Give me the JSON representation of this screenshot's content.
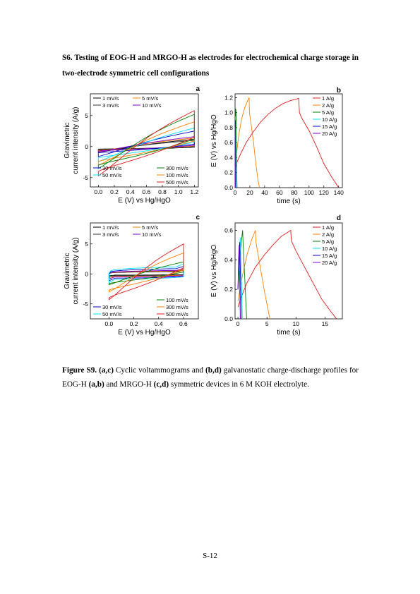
{
  "section_heading": "S6. Testing of EOG-H and MRGO-H as electrodes for electrochemical charge storage in two-electrode symmetric cell configurations",
  "caption": {
    "label": "Figure S9.",
    "parts": [
      {
        "t": " ",
        "b": false
      },
      {
        "t": "(a,c)",
        "b": true
      },
      {
        "t": " Cyclic voltammograms and ",
        "b": false
      },
      {
        "t": "(b,d)",
        "b": true
      },
      {
        "t": " galvanostatic charge-discharge profiles for EOG-H ",
        "b": false
      },
      {
        "t": "(a,b)",
        "b": true
      },
      {
        "t": " and MRGO-H ",
        "b": false
      },
      {
        "t": "(c,d)",
        "b": true
      },
      {
        "t": " symmetric devices in 6 M KOH electrolyte.",
        "b": false
      }
    ]
  },
  "page_number": "S-12",
  "colors": {
    "1": "#000000",
    "2": "#ff7f00",
    "3": "#008000",
    "4": "#00e0ff",
    "5": "#0000cc",
    "6": "#7b00d4",
    "7": "#e31a1c"
  },
  "chart_data": [
    {
      "panel": "a",
      "type": "line",
      "xlabel": "E (V) vs Hg/HgO",
      "ylabel": [
        "Gravimetric",
        "current intensity (A/g)"
      ],
      "xlim": [
        -0.1,
        1.25
      ],
      "ylim": [
        -6.5,
        8.5
      ],
      "xticks": [
        0.0,
        0.2,
        0.4,
        0.6,
        0.8,
        1.0,
        1.2
      ],
      "yticks": [
        -5,
        0,
        5
      ],
      "xtick_labels": [
        "0.0",
        "0.2",
        "0.4",
        "0.6",
        "0.8",
        "1.0",
        "1.2"
      ],
      "ytick_labels": [
        "-5",
        "0",
        "5"
      ],
      "legend_top": [
        [
          "1 mV/s",
          "5 mV/s"
        ],
        [
          "3 mV/s",
          "10 mV/s"
        ]
      ],
      "legend_bottom": [
        [
          "30 mV/s",
          "300 mV/s"
        ],
        [
          "50 mV/s",
          "100 mV/s"
        ],
        [
          "",
          "500 mV/s"
        ]
      ],
      "series": [
        {
          "name": "1 mV/s",
          "color": "#000000",
          "vmin": 0.0,
          "vmax": 1.2,
          "ia": -0.9,
          "ib": 1.2,
          "ic": -0.5,
          "id": -0.1
        },
        {
          "name": "3 mV/s",
          "color": "#333333",
          "vmin": 0.0,
          "vmax": 1.2,
          "ia": -0.7,
          "ib": 1.0,
          "ic": -0.4,
          "id": 0.0
        },
        {
          "name": "5 mV/s",
          "color": "#ff7f00",
          "vmin": 0.0,
          "vmax": 1.2,
          "ia": -0.8,
          "ib": 1.4,
          "ic": -0.6,
          "id": 0.1
        },
        {
          "name": "10 mV/s",
          "color": "#7b00d4",
          "vmin": 0.0,
          "vmax": 1.2,
          "ia": -0.9,
          "ib": 1.6,
          "ic": -0.7,
          "id": 0.2
        },
        {
          "name": "30 mV/s",
          "color": "#0000cc",
          "vmin": 0.0,
          "vmax": 1.2,
          "ia": -1.6,
          "ib": 2.5,
          "ic": -1.0,
          "id": 0.4
        },
        {
          "name": "50 mV/s",
          "color": "#00e0ff",
          "vmin": 0.0,
          "vmax": 1.2,
          "ia": -2.4,
          "ib": 3.0,
          "ic": -1.8,
          "id": 0.7
        },
        {
          "name": "100 mV/s",
          "color": "#ff7f00",
          "vmin": 0.0,
          "vmax": 1.2,
          "ia": -3.0,
          "ib": 4.0,
          "ic": -2.4,
          "id": 0.9
        },
        {
          "name": "300 mV/s",
          "color": "#008000",
          "vmin": 0.0,
          "vmax": 1.2,
          "ia": -3.5,
          "ib": 5.2,
          "ic": -3.0,
          "id": 1.2
        },
        {
          "name": "500 mV/s",
          "color": "#e31a1c",
          "vmin": 0.0,
          "vmax": 1.2,
          "ia": -4.7,
          "ib": 5.8,
          "ic": -4.0,
          "id": 1.5
        }
      ]
    },
    {
      "panel": "b",
      "type": "line",
      "xlabel": "time (s)",
      "ylabel": [
        "E (V) vs Hg/HgO"
      ],
      "xlim": [
        0,
        145
      ],
      "ylim": [
        0.0,
        1.25
      ],
      "xticks": [
        0,
        20,
        40,
        60,
        80,
        100,
        120,
        140
      ],
      "yticks": [
        0.0,
        0.2,
        0.4,
        0.6,
        0.8,
        1.0,
        1.2
      ],
      "xtick_labels": [
        "0",
        "20",
        "40",
        "60",
        "80",
        "100",
        "120",
        "140"
      ],
      "ytick_labels": [
        "0.0",
        "0.2",
        "0.4",
        "0.6",
        "0.8",
        "1.0",
        "1.2"
      ],
      "legend": [
        "1 A/g",
        "2 A/g",
        "5 A/g",
        "10 A/g",
        "15 A/g",
        "20 A/g"
      ],
      "series": [
        {
          "name": "1 A/g",
          "color": "#e31a1c",
          "points": [
            [
              0,
              0.22
            ],
            [
              3,
              0.35
            ],
            [
              8,
              0.46
            ],
            [
              15,
              0.6
            ],
            [
              25,
              0.75
            ],
            [
              35,
              0.88
            ],
            [
              45,
              0.98
            ],
            [
              55,
              1.06
            ],
            [
              65,
              1.12
            ],
            [
              75,
              1.16
            ],
            [
              83,
              1.18
            ],
            [
              86,
              1.19
            ],
            [
              87,
              1.0
            ],
            [
              90,
              0.93
            ],
            [
              100,
              0.76
            ],
            [
              110,
              0.55
            ],
            [
              120,
              0.32
            ],
            [
              130,
              0.15
            ],
            [
              136,
              0.06
            ],
            [
              140,
              0.0
            ]
          ]
        },
        {
          "name": "2 A/g",
          "color": "#ff7f00",
          "points": [
            [
              0,
              0.25
            ],
            [
              2,
              0.45
            ],
            [
              5,
              0.7
            ],
            [
              9,
              0.92
            ],
            [
              13,
              1.06
            ],
            [
              17,
              1.16
            ],
            [
              19,
              1.2
            ],
            [
              19.5,
              1.0
            ],
            [
              22,
              0.82
            ],
            [
              25,
              0.6
            ],
            [
              28,
              0.32
            ],
            [
              31,
              0.1
            ],
            [
              33,
              0.0
            ]
          ]
        },
        {
          "name": "5 A/g",
          "color": "#008000",
          "points": [
            [
              0,
              0.0
            ],
            [
              0.5,
              0.8
            ],
            [
              1,
              1.05
            ],
            [
              1.3,
              1.0
            ],
            [
              1.8,
              0.6
            ],
            [
              2.5,
              0.1
            ],
            [
              2.8,
              0.0
            ]
          ]
        },
        {
          "name": "10 A/g",
          "color": "#00e0ff",
          "points": [
            [
              0,
              0.0
            ],
            [
              0.3,
              0.7
            ],
            [
              0.6,
              0.95
            ],
            [
              0.9,
              0.5
            ],
            [
              1.2,
              0.0
            ]
          ]
        },
        {
          "name": "15 A/g",
          "color": "#0000cc",
          "points": [
            [
              0,
              0.0
            ],
            [
              0.2,
              0.6
            ],
            [
              0.4,
              0.9
            ],
            [
              0.6,
              0.4
            ],
            [
              0.8,
              0.0
            ]
          ]
        },
        {
          "name": "20 A/g",
          "color": "#7b00d4",
          "points": [
            [
              0,
              0.0
            ],
            [
              0.15,
              0.5
            ],
            [
              0.3,
              0.8
            ],
            [
              0.45,
              0.3
            ],
            [
              0.6,
              0.0
            ]
          ]
        }
      ]
    },
    {
      "panel": "c",
      "type": "line",
      "xlabel": "E (V) vs Hg/HgO",
      "ylabel": [
        "Gravimetric",
        "current intensity (A/g)"
      ],
      "xlim": [
        -0.15,
        0.72
      ],
      "ylim": [
        -7.5,
        8.5
      ],
      "xticks": [
        0.0,
        0.2,
        0.4,
        0.6
      ],
      "yticks": [
        -5,
        0,
        5
      ],
      "xtick_labels": [
        "0.0",
        "0.2",
        "0.4",
        "0.6"
      ],
      "ytick_labels": [
        "-5",
        "0",
        "5"
      ],
      "legend_top": [
        [
          "1 mV/s",
          "5 mV/s"
        ],
        [
          "3 mV/s",
          "10 mV/s"
        ]
      ],
      "legend_bottom": [
        [
          "",
          "100 mV/s"
        ],
        [
          "30 mV/s",
          "300 mV/s"
        ],
        [
          "50 mV/s",
          "500 mV/s"
        ]
      ],
      "series": [
        {
          "name": "1 mV/s",
          "color": "#000000",
          "vmin": 0.0,
          "vmax": 0.6,
          "ia": -0.3,
          "ib": 0.4,
          "ic": -0.2,
          "id": 0.0,
          "box": true
        },
        {
          "name": "3 mV/s",
          "color": "#333333",
          "vmin": 0.0,
          "vmax": 0.6,
          "ia": -0.3,
          "ib": 0.5,
          "ic": -0.3,
          "id": 0.0,
          "box": true
        },
        {
          "name": "5 mV/s",
          "color": "#ff7f00",
          "vmin": 0.0,
          "vmax": 0.6,
          "ia": -0.4,
          "ib": 0.5,
          "ic": -0.4,
          "id": 0.0,
          "box": true
        },
        {
          "name": "10 mV/s",
          "color": "#7b00d4",
          "vmin": 0.0,
          "vmax": 0.6,
          "ia": -0.5,
          "ib": 0.6,
          "ic": -0.5,
          "id": 0.0,
          "box": true
        },
        {
          "name": "30 mV/s",
          "color": "#0000cc",
          "vmin": 0.0,
          "vmax": 0.6,
          "ia": -0.8,
          "ib": 0.9,
          "ic": -0.7,
          "id": 0.0,
          "box": true
        },
        {
          "name": "50 mV/s",
          "color": "#00e0ff",
          "vmin": 0.0,
          "vmax": 0.6,
          "ia": -1.0,
          "ib": 1.2,
          "ic": -0.9,
          "id": 0.1,
          "box": true
        },
        {
          "name": "100 mV/s",
          "color": "#008000",
          "vmin": 0.0,
          "vmax": 0.6,
          "ia": -1.8,
          "ib": 2.0,
          "ic": -1.6,
          "id": 0.3
        },
        {
          "name": "300 mV/s",
          "color": "#ff7f00",
          "vmin": 0.0,
          "vmax": 0.6,
          "ia": -3.0,
          "ib": 3.5,
          "ic": -2.7,
          "id": 0.6
        },
        {
          "name": "500 mV/s",
          "color": "#e31a1c",
          "vmin": 0.0,
          "vmax": 0.6,
          "ia": -4.3,
          "ib": 5.0,
          "ic": -4.0,
          "id": 1.0
        }
      ]
    },
    {
      "panel": "d",
      "type": "line",
      "xlabel": "time (s)",
      "ylabel": [
        "E (V) vs Hg/HgO"
      ],
      "xlim": [
        -0.5,
        18
      ],
      "ylim": [
        0.0,
        0.65
      ],
      "xticks": [
        0,
        5,
        10,
        15
      ],
      "yticks": [
        0.0,
        0.2,
        0.4,
        0.6
      ],
      "xtick_labels": [
        "0",
        "5",
        "10",
        "15"
      ],
      "ytick_labels": [
        "0.0",
        "0.2",
        "0.4",
        "0.6"
      ],
      "legend": [
        "1 A/g",
        "2 A/g",
        "5 A/g",
        "10 A/g",
        "15 A/g",
        "20 A/g"
      ],
      "series": [
        {
          "name": "1 A/g",
          "color": "#e31a1c",
          "points": [
            [
              0,
              0.08
            ],
            [
              0.5,
              0.14
            ],
            [
              1.5,
              0.24
            ],
            [
              3,
              0.35
            ],
            [
              4.5,
              0.43
            ],
            [
              6,
              0.5
            ],
            [
              7.5,
              0.56
            ],
            [
              8.7,
              0.59
            ],
            [
              9.1,
              0.6
            ],
            [
              9.2,
              0.53
            ],
            [
              10,
              0.46
            ],
            [
              11.5,
              0.35
            ],
            [
              13,
              0.24
            ],
            [
              14.5,
              0.13
            ],
            [
              16,
              0.05
            ],
            [
              17,
              0.0
            ]
          ]
        },
        {
          "name": "2 A/g",
          "color": "#ff7f00",
          "points": [
            [
              0,
              0.12
            ],
            [
              0.8,
              0.3
            ],
            [
              1.6,
              0.44
            ],
            [
              2.4,
              0.54
            ],
            [
              3,
              0.6
            ],
            [
              3.1,
              0.52
            ],
            [
              3.8,
              0.36
            ],
            [
              4.6,
              0.18
            ],
            [
              5.4,
              0.02
            ],
            [
              5.5,
              0.0
            ]
          ]
        },
        {
          "name": "5 A/g",
          "color": "#008000",
          "points": [
            [
              0,
              0.2
            ],
            [
              0.4,
              0.45
            ],
            [
              0.8,
              0.6
            ],
            [
              0.9,
              0.5
            ],
            [
              1.2,
              0.25
            ],
            [
              1.5,
              0.0
            ]
          ]
        },
        {
          "name": "10 A/g",
          "color": "#00e0ff",
          "points": [
            [
              0,
              0.2
            ],
            [
              0.2,
              0.42
            ],
            [
              0.4,
              0.55
            ],
            [
              0.55,
              0.35
            ],
            [
              0.75,
              0.0
            ]
          ]
        },
        {
          "name": "15 A/g",
          "color": "#0000cc",
          "points": [
            [
              0,
              0.2
            ],
            [
              0.15,
              0.42
            ],
            [
              0.3,
              0.52
            ],
            [
              0.42,
              0.3
            ],
            [
              0.55,
              0.0
            ]
          ]
        },
        {
          "name": "20 A/g",
          "color": "#7b00d4",
          "points": [
            [
              0,
              0.2
            ],
            [
              0.1,
              0.4
            ],
            [
              0.2,
              0.5
            ],
            [
              0.3,
              0.25
            ],
            [
              0.4,
              0.0
            ]
          ]
        }
      ]
    }
  ]
}
